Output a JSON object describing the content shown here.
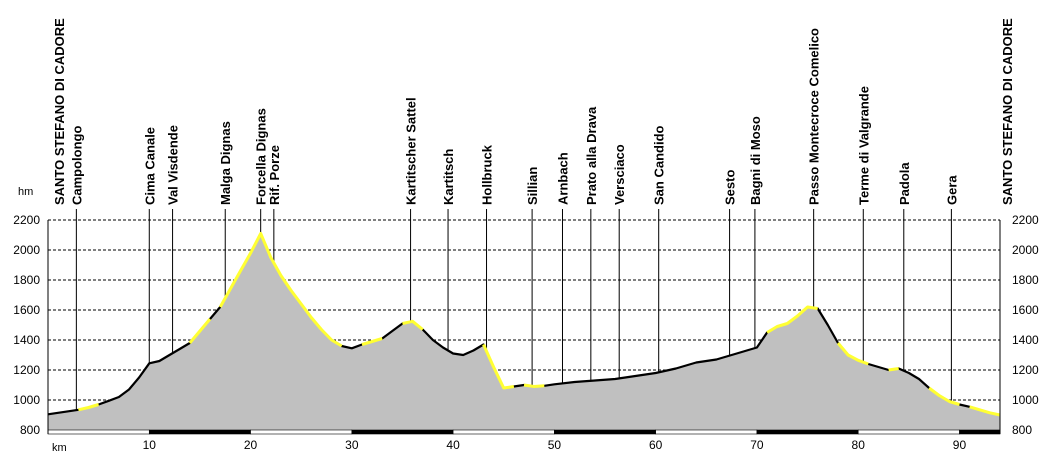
{
  "chart_data": {
    "type": "area",
    "xlabel": "km",
    "ylabel": "hm",
    "xlim": [
      0,
      94
    ],
    "ylim": [
      800,
      2200
    ],
    "x_ticks": [
      10,
      20,
      30,
      40,
      50,
      60,
      70,
      80,
      90
    ],
    "y_ticks": [
      800,
      1000,
      1200,
      1400,
      1600,
      1800,
      2000,
      2200
    ],
    "grid": true,
    "fill_color": "#c0c0c0",
    "line_color": "#000000",
    "highlight_color": "#ffff33",
    "profile": {
      "x": [
        0,
        1,
        2,
        3,
        4,
        5,
        6,
        7,
        8,
        9,
        10,
        11,
        12,
        13,
        14,
        15,
        16,
        17,
        18,
        19,
        20,
        21,
        22,
        23,
        24,
        25,
        26,
        27,
        28,
        29,
        30,
        31,
        32,
        33,
        34,
        35,
        36,
        37,
        38,
        39,
        40,
        41,
        42,
        43,
        44,
        45,
        46,
        47,
        48,
        49,
        50,
        52,
        54,
        56,
        58,
        60,
        62,
        64,
        66,
        68,
        70,
        71,
        72,
        73,
        74,
        75,
        76,
        77,
        78,
        79,
        80,
        81,
        82,
        83,
        84,
        85,
        86,
        87,
        88,
        89,
        90,
        91,
        92,
        93,
        94
      ],
      "y": [
        905,
        915,
        925,
        935,
        950,
        970,
        995,
        1020,
        1070,
        1150,
        1245,
        1260,
        1300,
        1340,
        1380,
        1460,
        1540,
        1620,
        1740,
        1860,
        1980,
        2110,
        1950,
        1830,
        1730,
        1640,
        1550,
        1470,
        1400,
        1360,
        1345,
        1370,
        1390,
        1410,
        1460,
        1510,
        1525,
        1470,
        1400,
        1350,
        1310,
        1300,
        1330,
        1370,
        1220,
        1080,
        1090,
        1100,
        1090,
        1095,
        1105,
        1120,
        1130,
        1140,
        1160,
        1180,
        1210,
        1250,
        1270,
        1310,
        1350,
        1450,
        1490,
        1510,
        1560,
        1620,
        1610,
        1500,
        1380,
        1300,
        1265,
        1240,
        1220,
        1200,
        1210,
        1180,
        1140,
        1080,
        1030,
        990,
        970,
        955,
        935,
        915,
        900
      ]
    },
    "highlight_segments": [
      [
        3,
        5
      ],
      [
        14,
        16
      ],
      [
        17,
        29
      ],
      [
        31,
        33
      ],
      [
        35,
        37
      ],
      [
        43,
        46
      ],
      [
        47,
        49
      ],
      [
        61,
        66
      ],
      [
        68,
        71
      ],
      [
        73,
        74
      ],
      [
        77,
        80
      ],
      [
        81,
        88
      ]
    ],
    "markers": [
      {
        "label": "SANTO STEFANO DI CADORE",
        "km": 0
      },
      {
        "label": "Campolongo",
        "km": 2.8
      },
      {
        "label": "Cima Canale",
        "km": 10
      },
      {
        "label": "Val Visdende",
        "km": 12.3
      },
      {
        "label": "Malga Dignas",
        "km": 17.5
      },
      {
        "label": "Forcella Dignas",
        "km": 21
      },
      {
        "label": "Rif. Porze",
        "km": 22.3
      },
      {
        "label": "Kartitscher Sattel",
        "km": 35.8
      },
      {
        "label": "Kartitsch",
        "km": 39.5
      },
      {
        "label": "Hollbruck",
        "km": 43.3
      },
      {
        "label": "Sillian",
        "km": 47.8
      },
      {
        "label": "Arnbach",
        "km": 50.8
      },
      {
        "label": "Prato alla Drava",
        "km": 53.6
      },
      {
        "label": "Versciaco",
        "km": 56.4
      },
      {
        "label": "San Candido",
        "km": 60.3
      },
      {
        "label": "Sesto",
        "km": 67.3
      },
      {
        "label": "Bagni di Moso",
        "km": 69.8
      },
      {
        "label": "Passo Montecroce Comelico",
        "km": 75.6
      },
      {
        "label": "Terme di Valgrande",
        "km": 80.5
      },
      {
        "label": "Padola",
        "km": 84.5
      },
      {
        "label": "Gera",
        "km": 89.2
      },
      {
        "label": "SANTO STEFANO DI CADORE",
        "km": 94
      }
    ]
  }
}
